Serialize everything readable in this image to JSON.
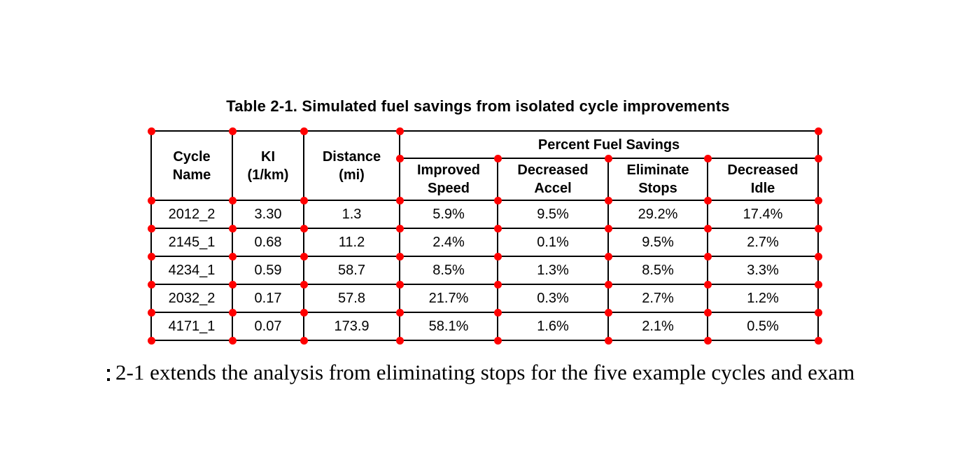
{
  "table": {
    "caption": "Table 2-1. Simulated fuel savings from isolated cycle improvements",
    "headers": {
      "cycle_name": "Cycle\nName",
      "ki": "KI\n(1/km)",
      "distance": "Distance\n(mi)",
      "percent_fuel_savings": "Percent Fuel Savings",
      "improved_speed": "Improved\nSpeed",
      "decreased_accel": "Decreased\nAccel",
      "eliminate_stops": "Eliminate\nStops",
      "decreased_idle": "Decreased\nIdle"
    },
    "rows": [
      [
        "2012_2",
        "3.30",
        "1.3",
        "5.9%",
        "9.5%",
        "29.2%",
        "17.4%"
      ],
      [
        "2145_1",
        "0.68",
        "11.2",
        "2.4%",
        "0.1%",
        "9.5%",
        "2.7%"
      ],
      [
        "4234_1",
        "0.59",
        "58.7",
        "8.5%",
        "1.3%",
        "8.5%",
        "3.3%"
      ],
      [
        "2032_2",
        "0.17",
        "57.8",
        "21.7%",
        "0.3%",
        "2.7%",
        "1.2%"
      ],
      [
        "4171_1",
        "0.07",
        "173.9",
        "58.1%",
        "1.6%",
        "2.1%",
        "0.5%"
      ]
    ]
  },
  "body_text": "2-1 extends the analysis from eliminating stops for the five example cycles and exam",
  "annotations": {
    "marker_semantic": "table-cell-corner-marker",
    "marker_color": "#ff0000"
  }
}
